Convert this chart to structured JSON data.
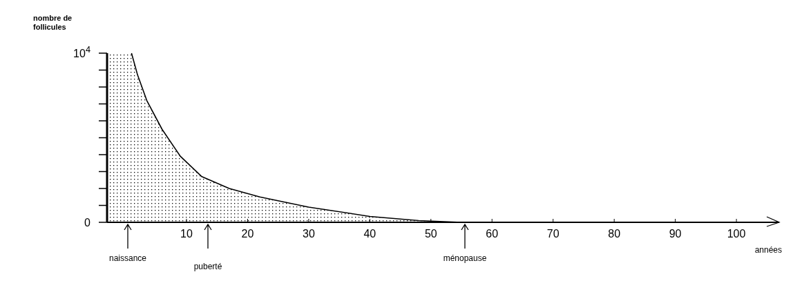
{
  "chart_data": {
    "type": "area",
    "xlabel": "années",
    "ylabel": "nombre de follicules",
    "x": [
      -3,
      1,
      2,
      3.5,
      6,
      9,
      12.5,
      17,
      22,
      30,
      40,
      48,
      55
    ],
    "values": [
      10000,
      10000,
      8700,
      7200,
      5500,
      3900,
      2700,
      2000,
      1500,
      900,
      350,
      100,
      0
    ],
    "color": "#000000",
    "xlim": [
      -3,
      107
    ],
    "xticks": [
      10,
      20,
      30,
      40,
      50,
      60,
      70,
      80,
      90,
      100
    ],
    "ylim": [
      0,
      10000
    ],
    "yticks": [
      0,
      {
        "value": 1000,
        "label": null
      },
      {
        "value": 2000,
        "label": null
      },
      {
        "value": 3000,
        "label": null
      },
      {
        "value": 4000,
        "label": null
      },
      {
        "value": 5000,
        "label": null
      },
      {
        "value": 6000,
        "label": null
      },
      {
        "value": 7000,
        "label": null
      },
      {
        "value": 8000,
        "label": null
      },
      {
        "value": 9000,
        "label": null
      },
      {
        "value": 10000,
        "label": "10$^{4}$"
      }
    ],
    "annotations": [
      "naissance",
      "puberté",
      "ménopause"
    ]
  }
}
